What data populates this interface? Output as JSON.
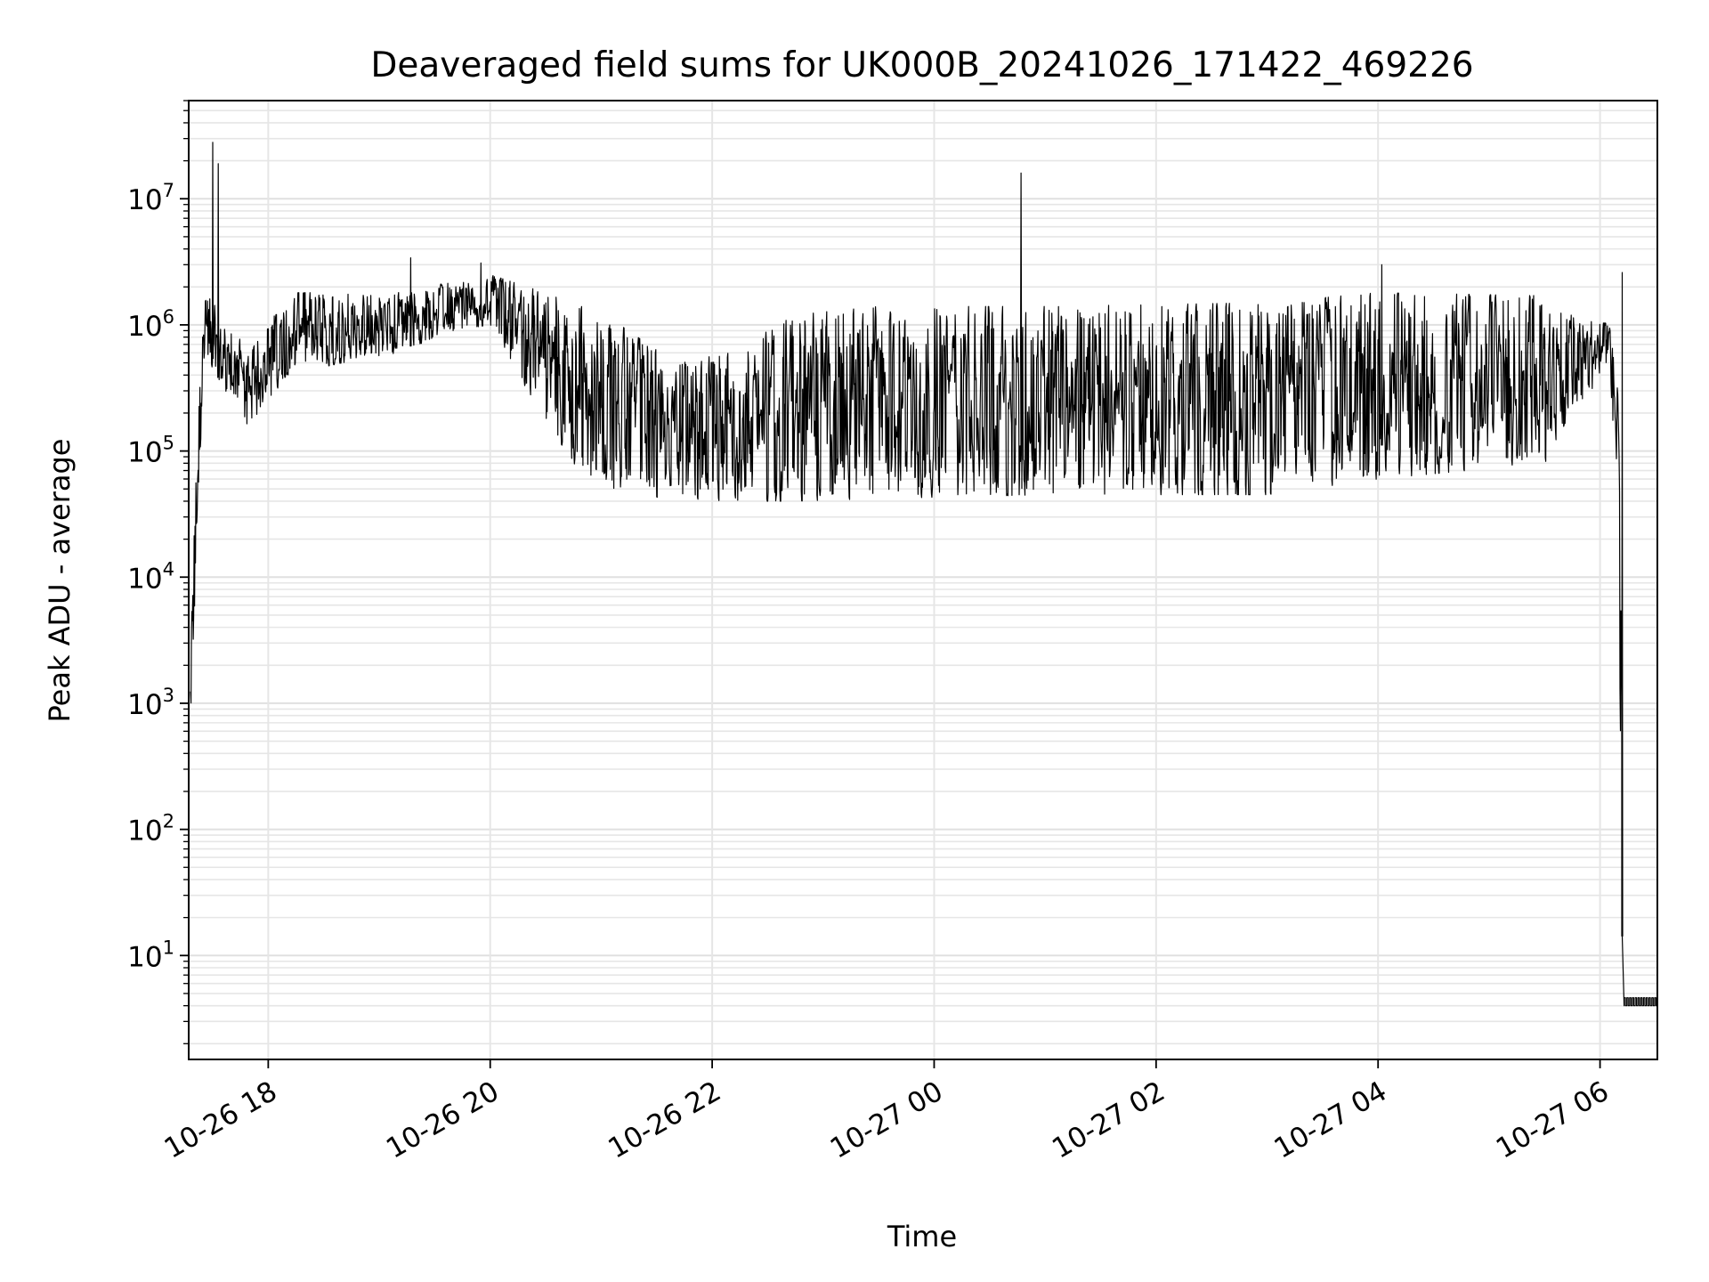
{
  "chart_data": {
    "type": "line",
    "title": "Deaveraged field sums for UK000B_20241026_171422_469226",
    "xlabel": "Time",
    "ylabel": "Peak ADU - average",
    "yscale": "log",
    "grid": true,
    "xlim": [
      "2024-10-26 17:17",
      "2024-10-27 06:31"
    ],
    "ylim": [
      1.5,
      60000000
    ],
    "x_ticks": [
      {
        "t": "2024-10-26 18:00",
        "label": "10-26 18"
      },
      {
        "t": "2024-10-26 20:00",
        "label": "10-26 20"
      },
      {
        "t": "2024-10-26 22:00",
        "label": "10-26 22"
      },
      {
        "t": "2024-10-27 00:00",
        "label": "10-27 00"
      },
      {
        "t": "2024-10-27 02:00",
        "label": "10-27 02"
      },
      {
        "t": "2024-10-27 04:00",
        "label": "10-27 04"
      },
      {
        "t": "2024-10-27 06:00",
        "label": "10-27 06"
      }
    ],
    "y_ticks": [
      {
        "value": 10,
        "base": "10",
        "exp": "1"
      },
      {
        "value": 100,
        "base": "10",
        "exp": "2"
      },
      {
        "value": 1000,
        "base": "10",
        "exp": "3"
      },
      {
        "value": 10000,
        "base": "10",
        "exp": "4"
      },
      {
        "value": 100000,
        "base": "10",
        "exp": "5"
      },
      {
        "value": 1000000,
        "base": "10",
        "exp": "6"
      },
      {
        "value": 10000000,
        "base": "10",
        "exp": "7"
      }
    ],
    "series": [
      {
        "color": "#000000",
        "envelope": [
          {
            "t": "2024-10-26 17:18",
            "low": 500,
            "high": 2000
          },
          {
            "t": "2024-10-26 17:20",
            "low": 4000,
            "high": 30000
          },
          {
            "t": "2024-10-26 17:23",
            "low": 70000,
            "high": 400000
          },
          {
            "t": "2024-10-26 17:26",
            "low": 700000,
            "high": 1800000
          },
          {
            "t": "2024-10-26 17:35",
            "low": 200000,
            "high": 1200000
          },
          {
            "t": "2024-10-26 17:50",
            "low": 150000,
            "high": 600000
          },
          {
            "t": "2024-10-26 18:10",
            "low": 400000,
            "high": 1800000
          },
          {
            "t": "2024-10-26 18:40",
            "low": 500000,
            "high": 1800000
          },
          {
            "t": "2024-10-26 19:10",
            "low": 600000,
            "high": 1800000
          },
          {
            "t": "2024-10-26 19:40",
            "low": 900000,
            "high": 2200000
          },
          {
            "t": "2024-10-26 20:00",
            "low": 1000000,
            "high": 2500000
          },
          {
            "t": "2024-10-26 20:20",
            "low": 300000,
            "high": 2000000
          },
          {
            "t": "2024-10-26 20:45",
            "low": 80000,
            "high": 1500000
          },
          {
            "t": "2024-10-26 21:10",
            "low": 45000,
            "high": 1000000
          },
          {
            "t": "2024-10-26 21:40",
            "low": 42000,
            "high": 500000
          },
          {
            "t": "2024-10-26 22:10",
            "low": 40000,
            "high": 600000
          },
          {
            "t": "2024-10-26 22:45",
            "low": 40000,
            "high": 1200000
          },
          {
            "t": "2024-10-26 23:30",
            "low": 42000,
            "high": 1400000
          },
          {
            "t": "2024-10-27 01:00",
            "low": 45000,
            "high": 1400000
          },
          {
            "t": "2024-10-27 03:00",
            "low": 45000,
            "high": 1500000
          },
          {
            "t": "2024-10-27 04:00",
            "low": 60000,
            "high": 1800000
          },
          {
            "t": "2024-10-27 05:30",
            "low": 80000,
            "high": 1700000
          },
          {
            "t": "2024-10-27 06:05",
            "low": 500000,
            "high": 1000000
          },
          {
            "t": "2024-10-27 06:10",
            "low": 30000,
            "high": 300000
          },
          {
            "t": "2024-10-27 06:12",
            "low": 3,
            "high": 1000
          }
        ],
        "spikes": [
          {
            "t": "2024-10-26 17:30",
            "value": 28000000
          },
          {
            "t": "2024-10-26 17:33",
            "value": 19000000
          },
          {
            "t": "2024-10-26 19:17",
            "value": 3400000
          },
          {
            "t": "2024-10-26 19:55",
            "value": 3100000
          },
          {
            "t": "2024-10-27 00:47",
            "value": 16000000
          },
          {
            "t": "2024-10-27 04:02",
            "value": 3000000
          },
          {
            "t": "2024-10-27 06:12",
            "value": 2600000
          }
        ],
        "tail": {
          "from": "2024-10-27 06:13",
          "to": "2024-10-27 06:31",
          "value": 4
        }
      }
    ]
  }
}
